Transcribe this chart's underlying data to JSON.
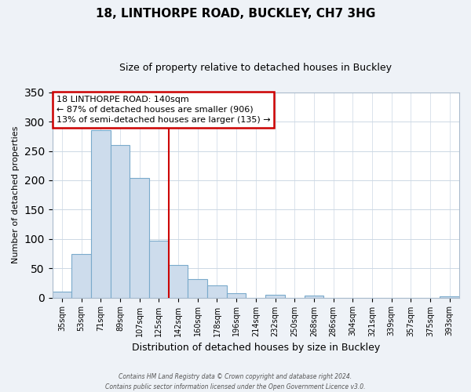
{
  "title": "18, LINTHORPE ROAD, BUCKLEY, CH7 3HG",
  "subtitle": "Size of property relative to detached houses in Buckley",
  "xlabel": "Distribution of detached houses by size in Buckley",
  "ylabel": "Number of detached properties",
  "bar_labels": [
    "35sqm",
    "53sqm",
    "71sqm",
    "89sqm",
    "107sqm",
    "125sqm",
    "142sqm",
    "160sqm",
    "178sqm",
    "196sqm",
    "214sqm",
    "232sqm",
    "250sqm",
    "268sqm",
    "286sqm",
    "304sqm",
    "321sqm",
    "339sqm",
    "357sqm",
    "375sqm",
    "393sqm"
  ],
  "bar_values": [
    10,
    74,
    286,
    260,
    204,
    97,
    55,
    31,
    21,
    8,
    0,
    5,
    0,
    4,
    0,
    0,
    0,
    0,
    0,
    0,
    2
  ],
  "bar_color": "#cddcec",
  "bar_edge_color": "#7aaacb",
  "vline_index": 6,
  "vline_color": "#cc0000",
  "annotation_line1": "18 LINTHORPE ROAD: 140sqm",
  "annotation_line2": "← 87% of detached houses are smaller (906)",
  "annotation_line3": "13% of semi-detached houses are larger (135) →",
  "annotation_box_color": "#ffffff",
  "annotation_box_edge": "#cc0000",
  "ylim": [
    0,
    350
  ],
  "yticks": [
    0,
    50,
    100,
    150,
    200,
    250,
    300,
    350
  ],
  "footer_line1": "Contains HM Land Registry data © Crown copyright and database right 2024.",
  "footer_line2": "Contains public sector information licensed under the Open Government Licence v3.0.",
  "bg_color": "#eef2f7",
  "plot_bg_color": "#ffffff",
  "grid_color": "#ccd8e4"
}
